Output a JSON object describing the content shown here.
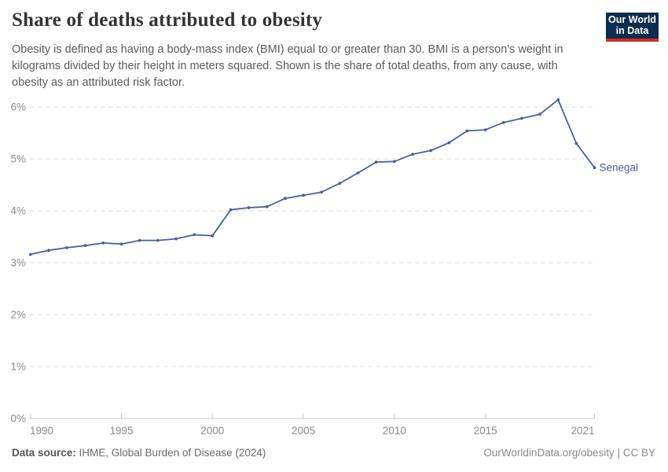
{
  "header": {
    "title": "Share of deaths attributed to obesity",
    "subtitle": "Obesity is defined as having a body-mass index (BMI) equal to or greater than 30. BMI is a person's weight in kilograms divided by their height in meters squared. Shown is the share of total deaths, from any cause, with obesity as an attributed risk factor."
  },
  "logo": {
    "line1": "Our World",
    "line2": "in Data",
    "bg_color": "#0d2d4e",
    "accent_color": "#cf2c22"
  },
  "chart_data": {
    "type": "line",
    "title": "Share of deaths attributed to obesity",
    "x": [
      1990,
      1991,
      1992,
      1993,
      1994,
      1995,
      1996,
      1997,
      1998,
      1999,
      2000,
      2001,
      2002,
      2003,
      2004,
      2005,
      2006,
      2007,
      2008,
      2009,
      2010,
      2011,
      2012,
      2013,
      2014,
      2015,
      2016,
      2017,
      2018,
      2019,
      2020,
      2021
    ],
    "series": [
      {
        "name": "Senegal",
        "values": [
          3.16,
          3.24,
          3.29,
          3.33,
          3.38,
          3.36,
          3.43,
          3.43,
          3.46,
          3.54,
          3.52,
          4.02,
          4.06,
          4.08,
          4.24,
          4.3,
          4.36,
          4.53,
          4.73,
          4.94,
          4.95,
          5.09,
          5.16,
          5.31,
          5.54,
          5.56,
          5.7,
          5.78,
          5.86,
          6.14,
          5.3,
          4.83
        ]
      }
    ],
    "xlim": [
      1990,
      2021
    ],
    "ylim": [
      0,
      6
    ],
    "ytick_values": [
      0,
      1,
      2,
      3,
      4,
      5,
      6
    ],
    "ytick_labels": [
      "0%",
      "1%",
      "2%",
      "3%",
      "4%",
      "5%",
      "6%"
    ],
    "xtick_values": [
      1990,
      1995,
      2000,
      2005,
      2010,
      2015,
      2021
    ],
    "xtick_labels": [
      "1990",
      "1995",
      "2000",
      "2005",
      "2010",
      "2015",
      "2021"
    ],
    "grid": true,
    "legend_position": "end-of-line-label",
    "line_color": "#46629e",
    "gridline_color": "#dcdcdc",
    "axis_line_color": "#c8c8c8",
    "tick_label_color": "#8b8b8b"
  },
  "footer": {
    "datasource_label": "Data source:",
    "datasource_value": " IHME, Global Burden of Disease (2024)",
    "rights": "OurWorldinData.org/obesity | CC BY"
  }
}
